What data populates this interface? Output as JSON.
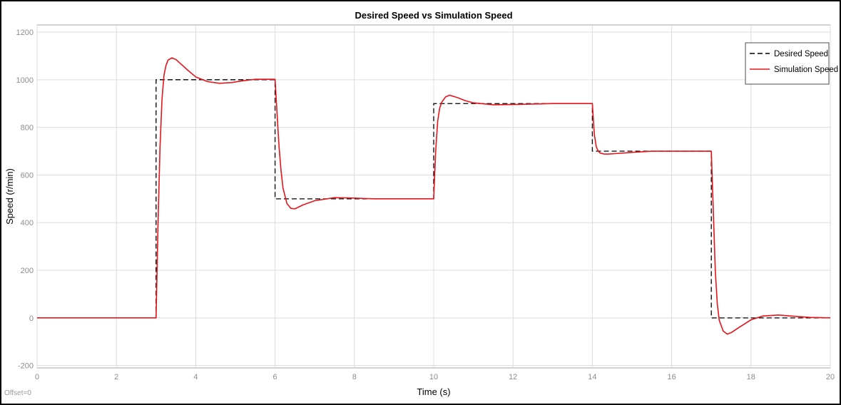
{
  "chart_data": {
    "type": "line",
    "title": "Desired Speed vs Simulation Speed",
    "xlabel": "Time (s)",
    "ylabel": "Speed (r/min)",
    "xlim": [
      0,
      20
    ],
    "ylim": [
      -210,
      1230
    ],
    "x_ticks": [
      0,
      2,
      4,
      6,
      8,
      10,
      12,
      14,
      16,
      18,
      20
    ],
    "y_ticks": [
      -200,
      0,
      200,
      400,
      600,
      800,
      1000,
      1200
    ],
    "grid": true,
    "legend_position": "top-right",
    "annotation": "Offset=0",
    "series": [
      {
        "name": "Desired Speed",
        "style": "dashed",
        "color": "#000000",
        "x": [
          0,
          3,
          3,
          6,
          6,
          10,
          10,
          14,
          14,
          17,
          17,
          20
        ],
        "y": [
          0,
          0,
          1000,
          1000,
          500,
          500,
          900,
          900,
          700,
          700,
          0,
          0
        ]
      },
      {
        "name": "Simulation Speed",
        "style": "solid",
        "color": "#e8141c",
        "x": [
          0,
          3.0,
          3.05,
          3.1,
          3.15,
          3.2,
          3.25,
          3.3,
          3.4,
          3.5,
          3.6,
          3.8,
          4.0,
          4.3,
          4.6,
          4.9,
          5.2,
          5.5,
          6.0,
          6.05,
          6.1,
          6.15,
          6.2,
          6.3,
          6.4,
          6.5,
          6.7,
          7.0,
          7.5,
          8.0,
          8.5,
          9.0,
          10.0,
          10.05,
          10.1,
          10.15,
          10.2,
          10.3,
          10.4,
          10.6,
          10.8,
          11.0,
          11.5,
          12.0,
          13.0,
          14.0,
          14.05,
          14.1,
          14.15,
          14.2,
          14.3,
          14.4,
          14.6,
          15.0,
          15.5,
          16.0,
          17.0,
          17.05,
          17.1,
          17.15,
          17.2,
          17.3,
          17.4,
          17.5,
          17.7,
          18.0,
          18.3,
          18.7,
          19.0,
          19.5,
          20.0
        ],
        "y": [
          0,
          0,
          400,
          720,
          920,
          1020,
          1060,
          1082,
          1092,
          1085,
          1070,
          1040,
          1012,
          992,
          985,
          988,
          996,
          1002,
          1002,
          860,
          720,
          620,
          545,
          480,
          460,
          458,
          474,
          492,
          505,
          503,
          500,
          500,
          500,
          700,
          825,
          880,
          905,
          928,
          935,
          925,
          912,
          903,
          895,
          896,
          900,
          900,
          770,
          718,
          700,
          692,
          688,
          688,
          690,
          695,
          700,
          700,
          700,
          450,
          200,
          60,
          -10,
          -55,
          -68,
          -62,
          -40,
          -8,
          8,
          12,
          8,
          2,
          0
        ]
      }
    ]
  }
}
